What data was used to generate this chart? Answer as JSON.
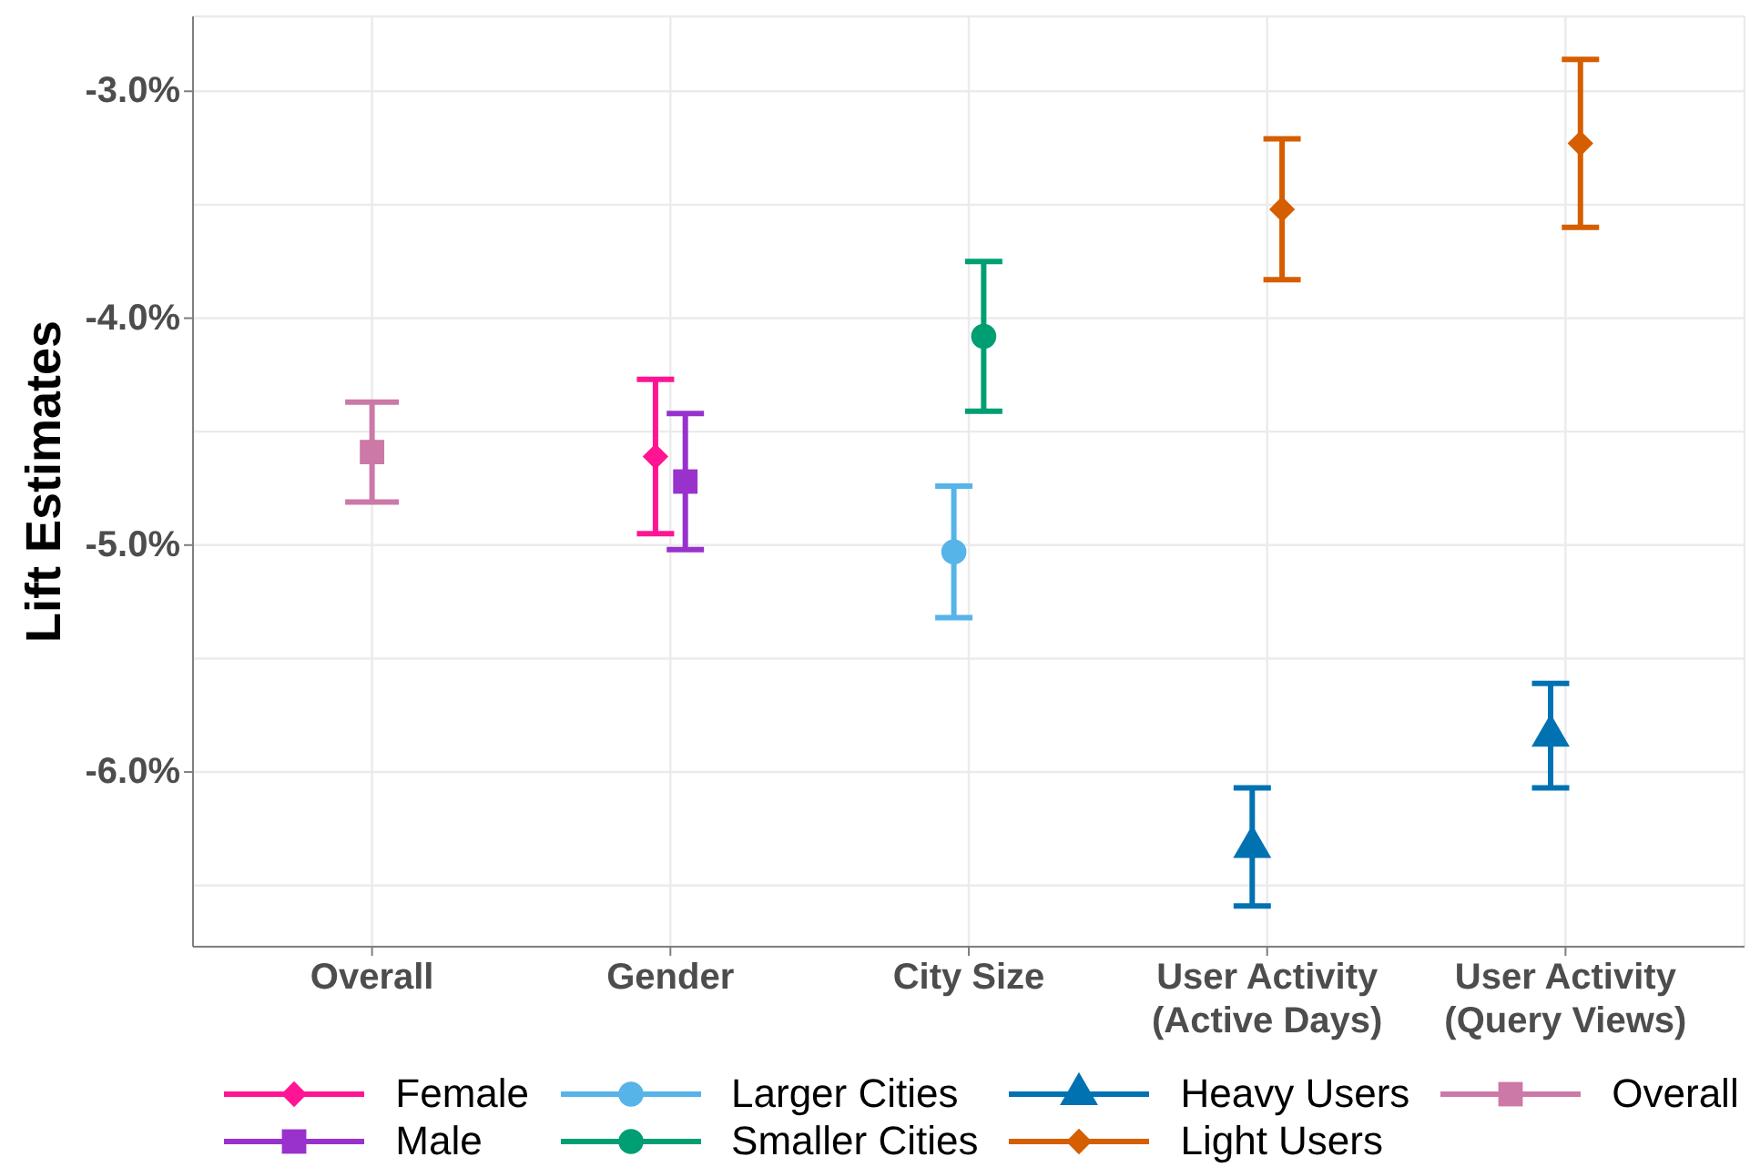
{
  "chart_data": {
    "type": "scatter",
    "ylabel": "Lift Estimates",
    "categories": [
      "Overall",
      "Gender",
      "City Size",
      "User Activity\n(Active Days)",
      "User Activity\n(Query Views)"
    ],
    "series": [
      {
        "name": "Female",
        "color": "#ff1493",
        "marker": "diamond",
        "values": [
          null,
          -4.61,
          null,
          null,
          null
        ],
        "errors": [
          null,
          0.34,
          null,
          null,
          null
        ]
      },
      {
        "name": "Male",
        "color": "#9932cc",
        "marker": "square",
        "values": [
          null,
          -4.72,
          null,
          null,
          null
        ],
        "errors": [
          null,
          0.3,
          null,
          null,
          null
        ]
      },
      {
        "name": "Larger Cities",
        "color": "#56b4e9",
        "marker": "circle",
        "values": [
          null,
          null,
          -5.03,
          null,
          null
        ],
        "errors": [
          null,
          null,
          0.29,
          null,
          null
        ]
      },
      {
        "name": "Smaller Cities",
        "color": "#009e73",
        "marker": "circle",
        "values": [
          null,
          null,
          -4.08,
          null,
          null
        ],
        "errors": [
          null,
          null,
          0.33,
          null,
          null
        ]
      },
      {
        "name": "Heavy Users",
        "color": "#0072b2",
        "marker": "triangle",
        "values": [
          null,
          null,
          null,
          -6.33,
          -5.84
        ],
        "errors": [
          null,
          null,
          null,
          0.26,
          0.23
        ]
      },
      {
        "name": "Light Users",
        "color": "#d55e00",
        "marker": "diamond",
        "values": [
          null,
          null,
          null,
          -3.52,
          -3.23
        ],
        "errors": [
          null,
          null,
          null,
          0.31,
          0.37
        ]
      },
      {
        "name": "Overall",
        "color": "#cc79a7",
        "marker": "square",
        "values": [
          -4.59,
          null,
          null,
          null,
          null
        ],
        "errors": [
          0.22,
          null,
          null,
          null,
          null
        ]
      }
    ],
    "ylim": [
      -6.77,
      -2.67
    ],
    "yticks": [
      {
        "value": -6.5,
        "label": null
      },
      {
        "value": -6,
        "label": "-6.0%"
      },
      {
        "value": -5.5,
        "label": null
      },
      {
        "value": -5,
        "label": "-5.0%"
      },
      {
        "value": -4.5,
        "label": null
      },
      {
        "value": -4,
        "label": "-4.0%"
      },
      {
        "value": -3.5,
        "label": null
      },
      {
        "value": -3,
        "label": "-3.0%"
      }
    ],
    "grid": true,
    "legend": "bottom"
  }
}
